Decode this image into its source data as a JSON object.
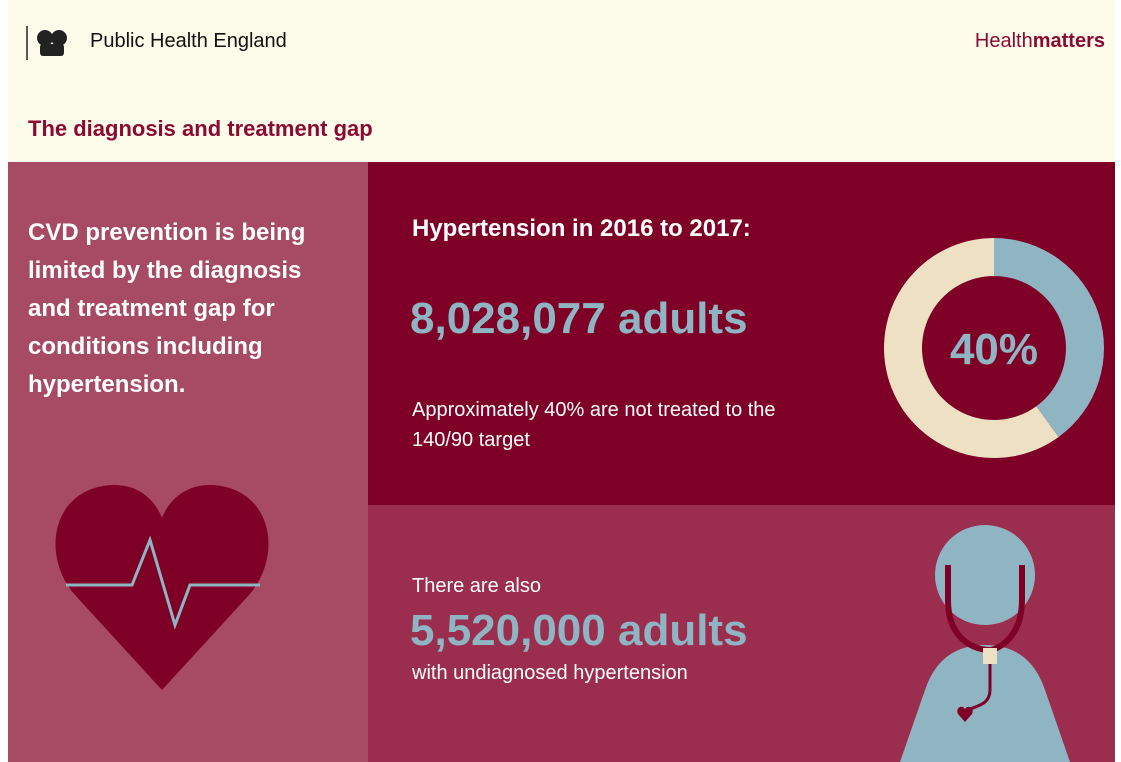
{
  "header": {
    "organisation": "Public Health England",
    "brand_light": "Health",
    "brand_bold": "matters",
    "title": "The diagnosis and treatment gap"
  },
  "left_panel": {
    "text": "CVD prevention is being limited by the diagnosis and treatment gap for conditions including hypertension."
  },
  "top_panel": {
    "heading": "Hypertension in 2016 to 2017:",
    "stat": "8,028,077 adults",
    "note": "Approximately 40% are not treated to the 140/90 target",
    "donut": {
      "value": 40,
      "label": "40%"
    }
  },
  "bottom_panel": {
    "intro": "There are also",
    "stat": "5,520,000 adults",
    "note": "with undiagnosed hypertension"
  }
}
